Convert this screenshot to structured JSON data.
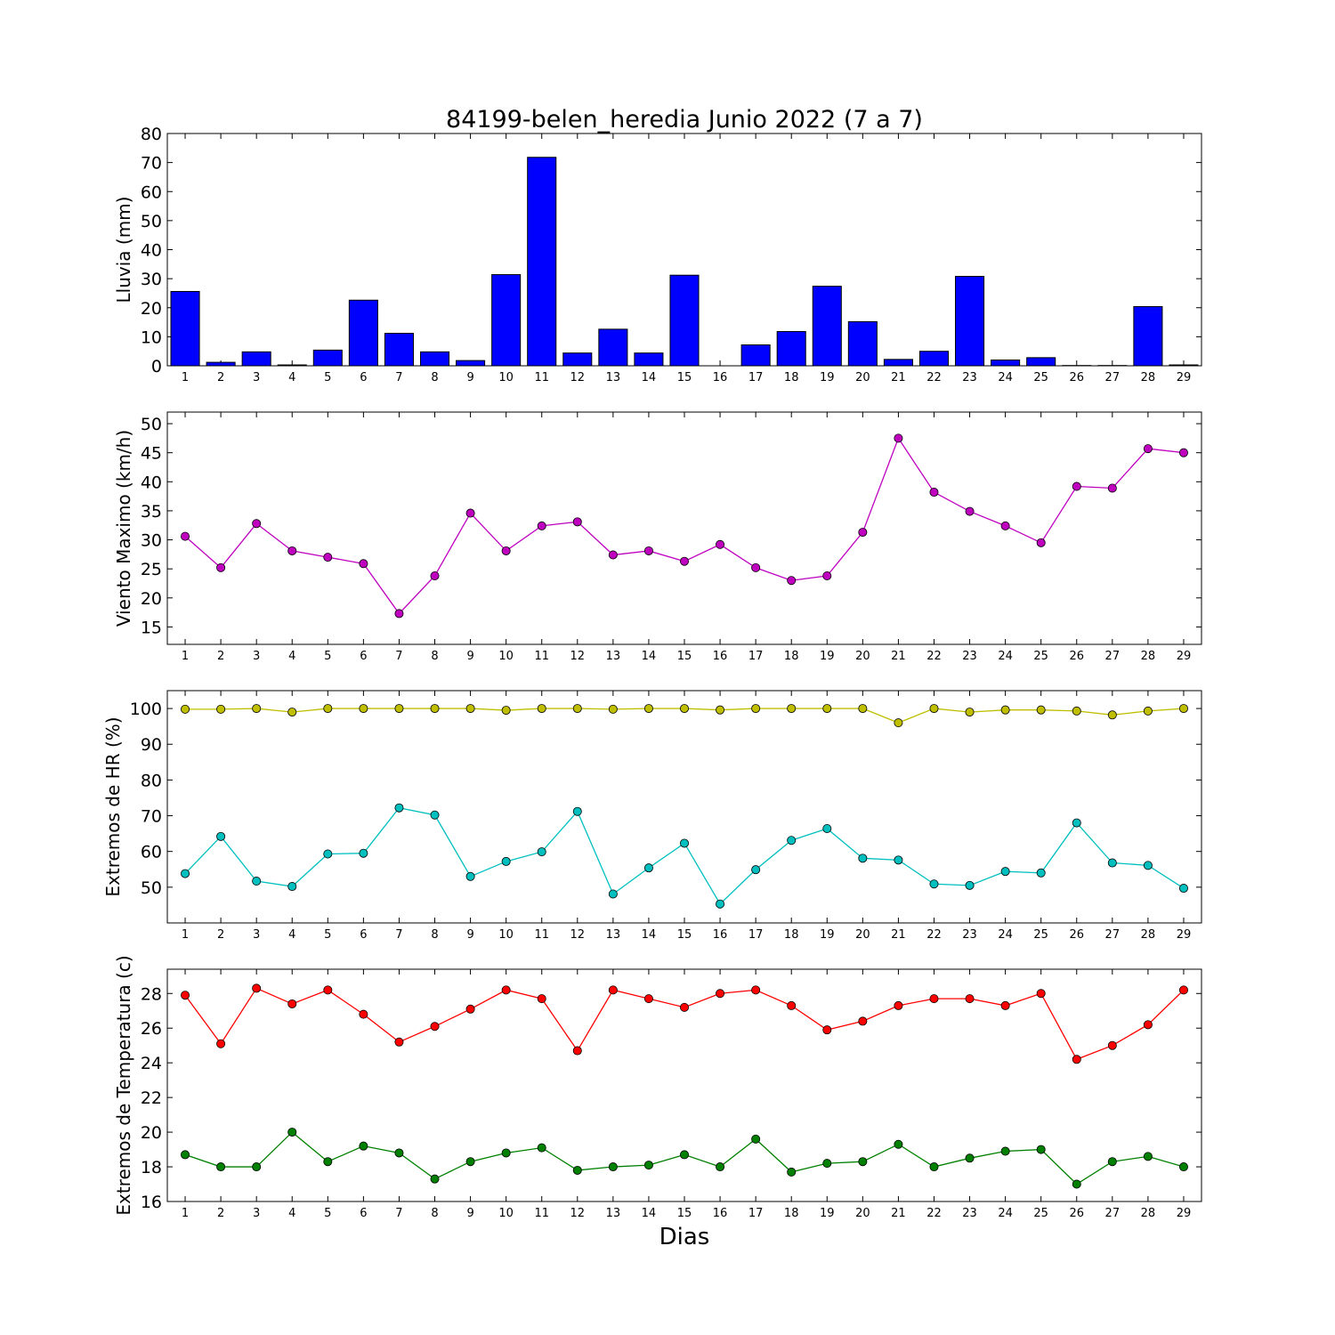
{
  "chart_data": [
    {
      "type": "bar",
      "title": "84199-belen_heredia Junio 2022  (7 a 7)",
      "xlabel": "",
      "ylabel": "Lluvia (mm)",
      "ylim": [
        0,
        80
      ],
      "yticks": [
        0,
        10,
        20,
        30,
        40,
        50,
        60,
        70,
        80
      ],
      "categories": [
        1,
        2,
        3,
        4,
        5,
        6,
        7,
        8,
        9,
        10,
        11,
        12,
        13,
        14,
        15,
        16,
        17,
        18,
        19,
        20,
        21,
        22,
        23,
        24,
        25,
        26,
        27,
        28,
        29
      ],
      "series": [
        {
          "values": [
            25.6,
            1.2,
            4.8,
            0.3,
            5.4,
            22.6,
            11.2,
            4.8,
            1.8,
            31.4,
            71.8,
            4.4,
            12.6,
            4.4,
            31.2,
            0,
            7.2,
            11.8,
            27.4,
            15.2,
            2.2,
            5.0,
            30.8,
            2.0,
            2.8,
            0.1,
            0.1,
            20.4,
            0.3
          ],
          "color": "#0000ff"
        }
      ],
      "grid": false
    },
    {
      "type": "line",
      "xlabel": "",
      "ylabel": "Viento Maximo (km/h)",
      "ylim": [
        12,
        52
      ],
      "yticks": [
        15,
        20,
        25,
        30,
        35,
        40,
        45,
        50
      ],
      "categories": [
        1,
        2,
        3,
        4,
        5,
        6,
        7,
        8,
        9,
        10,
        11,
        12,
        13,
        14,
        15,
        16,
        17,
        18,
        19,
        20,
        21,
        22,
        23,
        24,
        25,
        26,
        27,
        28,
        29
      ],
      "series": [
        {
          "values": [
            30.6,
            25.2,
            32.8,
            28.1,
            27.0,
            25.9,
            17.3,
            23.8,
            34.6,
            28.1,
            32.4,
            33.1,
            27.4,
            28.1,
            26.3,
            29.2,
            25.2,
            23.0,
            23.8,
            31.3,
            47.5,
            38.2,
            34.9,
            32.4,
            29.5,
            39.2,
            38.9,
            45.7,
            45.0
          ],
          "color": "#bf00bf"
        }
      ],
      "grid": false
    },
    {
      "type": "line",
      "xlabel": "",
      "ylabel": "Extremos de HR (%)",
      "ylim": [
        40,
        105
      ],
      "yticks": [
        50,
        60,
        70,
        80,
        90,
        100
      ],
      "categories": [
        1,
        2,
        3,
        4,
        5,
        6,
        7,
        8,
        9,
        10,
        11,
        12,
        13,
        14,
        15,
        16,
        17,
        18,
        19,
        20,
        21,
        22,
        23,
        24,
        25,
        26,
        27,
        28,
        29
      ],
      "series": [
        {
          "values": [
            99.8,
            99.8,
            100,
            99,
            100,
            100,
            100,
            100,
            100,
            99.5,
            100,
            100,
            99.8,
            100,
            100,
            99.6,
            100,
            100,
            100,
            100,
            96.0,
            100,
            99.0,
            99.6,
            99.6,
            99.3,
            98.2,
            99.3,
            100
          ],
          "color": "#bfbf00"
        },
        {
          "values": [
            53.8,
            64.2,
            51.7,
            50.2,
            59.3,
            59.5,
            72.2,
            70.2,
            53.0,
            57.2,
            59.9,
            71.2,
            48.1,
            55.4,
            62.3,
            45.3,
            54.9,
            63.1,
            66.4,
            58.1,
            57.6,
            50.9,
            50.5,
            54.4,
            54.0,
            68.0,
            56.8,
            56.1,
            49.7
          ],
          "color": "#00bfbf"
        }
      ],
      "grid": false
    },
    {
      "type": "line",
      "xlabel": "Dias",
      "ylabel": "Extremos de Temperatura (c)",
      "ylim": [
        16,
        29.4
      ],
      "yticks": [
        16,
        18,
        20,
        22,
        24,
        26,
        28
      ],
      "categories": [
        1,
        2,
        3,
        4,
        5,
        6,
        7,
        8,
        9,
        10,
        11,
        12,
        13,
        14,
        15,
        16,
        17,
        18,
        19,
        20,
        21,
        22,
        23,
        24,
        25,
        26,
        27,
        28,
        29
      ],
      "series": [
        {
          "values": [
            27.9,
            25.1,
            28.3,
            27.4,
            28.2,
            26.8,
            25.2,
            26.1,
            27.1,
            28.2,
            27.7,
            24.7,
            28.2,
            27.7,
            27.2,
            28.0,
            28.2,
            27.3,
            25.9,
            26.4,
            27.3,
            27.7,
            27.7,
            27.3,
            28.0,
            24.2,
            25.0,
            26.2,
            28.2
          ],
          "color": "#ff0000"
        },
        {
          "values": [
            18.7,
            18.0,
            18.0,
            20.0,
            18.3,
            19.2,
            18.8,
            17.3,
            18.3,
            18.8,
            19.1,
            17.8,
            18.0,
            18.1,
            18.7,
            18.0,
            19.6,
            17.7,
            18.2,
            18.3,
            19.3,
            18.0,
            18.5,
            18.9,
            19.0,
            17.0,
            18.3,
            18.6,
            18.0
          ],
          "color": "#008000"
        }
      ],
      "grid": false
    }
  ]
}
